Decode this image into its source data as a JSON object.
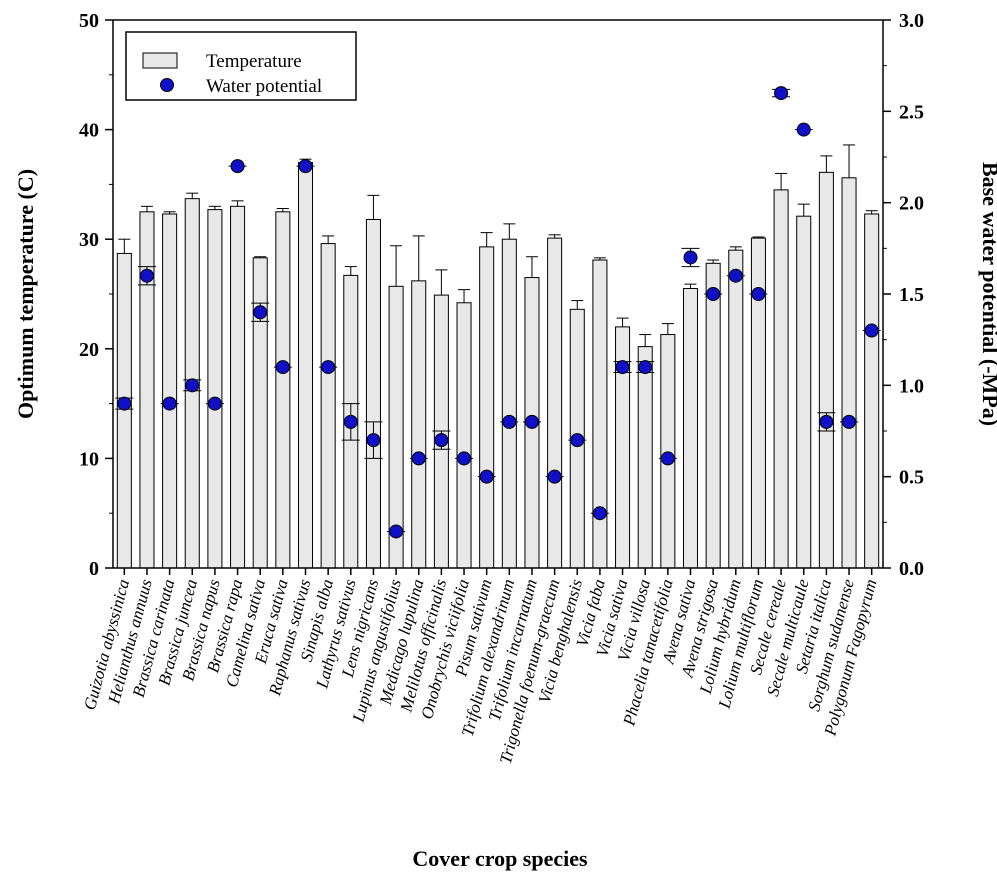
{
  "chart_data": {
    "type": "bar",
    "title": "",
    "xlabel": "Cover crop species",
    "ylabel": "Optimum temperature (C)",
    "y2label": "Base water potential (-MPa)",
    "ylim": [
      0,
      50
    ],
    "y2lim": [
      0,
      3.0
    ],
    "yticks": [
      "0",
      "10",
      "20",
      "30",
      "40",
      "50"
    ],
    "y2ticks": [
      "0.0",
      "0.5",
      "1.0",
      "1.5",
      "2.0",
      "2.5",
      "3.0"
    ],
    "legend_position": "top-left",
    "grid": false,
    "categories": [
      "Guizotia abyssinica",
      "Helianthus annuus",
      "Brassica carinata",
      "Brassica juncea",
      "Brassica napus",
      "Brassica rapa",
      "Camelina sativa",
      "Eruca sativa",
      "Raphanus sativus",
      "Sinapis alba",
      "Lathyrus sativus",
      "Lens nigricans",
      "Lupinus angustifolius",
      "Medicago lupulina",
      "Melilotus officinalis",
      "Onobrychis viciifolia",
      "Pisum sativum",
      "Trifolium alexandrinum",
      "Trifolium incarnatum",
      "Trigonella foenum-graecum",
      "Vicia benghalensis",
      "Vicia faba",
      "Vicia sativa",
      "Vicia villosa",
      "Phacelia tanacetifolia",
      "Avena sativa",
      "Avena strigosa",
      "Lolium hybridum",
      "Lolium multiflorum",
      "Secale cereale",
      "Secale multicaule",
      "Setaria italica",
      "Sorghum sudanense",
      "Polygonum Fagopyrum"
    ],
    "series": [
      {
        "name": "Temperature",
        "axis": "left",
        "kind": "bar",
        "color": "#e8e8e8",
        "values": [
          28.7,
          32.5,
          32.3,
          33.7,
          32.7,
          33.0,
          28.3,
          32.5,
          37.0,
          29.6,
          26.7,
          31.8,
          25.7,
          26.2,
          24.9,
          24.2,
          29.3,
          30.0,
          26.5,
          30.1,
          23.6,
          28.1,
          22.0,
          20.2,
          21.3,
          25.5,
          27.8,
          29.0,
          30.1,
          34.5,
          32.1,
          36.1,
          35.6,
          32.3
        ],
        "errors": [
          1.3,
          0.5,
          0.2,
          0.5,
          0.3,
          0.5,
          0.1,
          0.3,
          0.3,
          0.7,
          0.8,
          2.2,
          3.7,
          4.1,
          2.3,
          1.2,
          1.3,
          1.4,
          1.9,
          0.3,
          0.8,
          0.2,
          0.8,
          1.1,
          1.0,
          0.4,
          0.3,
          0.3,
          0.1,
          1.5,
          1.1,
          1.5,
          3.0,
          0.3
        ]
      },
      {
        "name": "Water potential",
        "axis": "right",
        "kind": "scatter",
        "color": "#1010c8",
        "values": [
          0.9,
          1.6,
          0.9,
          1.0,
          0.9,
          2.2,
          1.4,
          1.1,
          2.2,
          1.1,
          0.8,
          0.7,
          0.2,
          0.6,
          0.7,
          0.6,
          0.5,
          0.8,
          0.8,
          0.5,
          0.7,
          0.3,
          1.1,
          1.1,
          0.6,
          1.7,
          1.5,
          1.6,
          1.5,
          2.6,
          2.4,
          0.8,
          0.8,
          1.3
        ],
        "errors": [
          0.03,
          0.05,
          0.0,
          0.03,
          0.0,
          0.0,
          0.05,
          0.0,
          0.0,
          0.0,
          0.1,
          0.1,
          0.0,
          0.0,
          0.05,
          0.0,
          0.0,
          0.0,
          0.0,
          0.0,
          0.0,
          0.0,
          0.03,
          0.03,
          0.0,
          0.05,
          0.0,
          0.0,
          0.0,
          0.02,
          0.0,
          0.05,
          0.0,
          0.0
        ]
      }
    ]
  }
}
